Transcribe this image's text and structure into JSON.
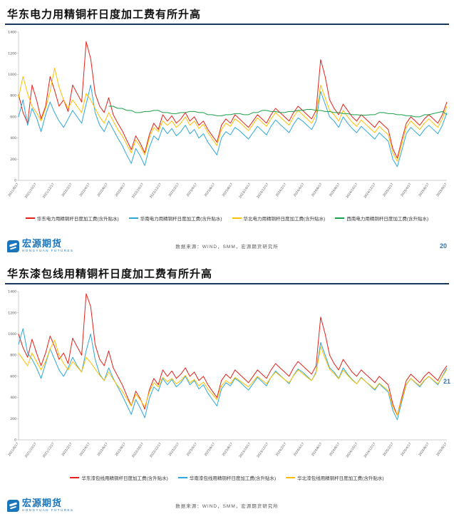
{
  "logo": {
    "cn": "宏源期货",
    "en": "HONGYUAN FUTURES"
  },
  "slides": [
    {
      "title": "华东电力用精铜杆日度加工费有所升高",
      "page_number": "20",
      "source": "数据来源：WIND，SMM，宏源期货研究所",
      "chart_data": {
        "type": "line",
        "title": "华东电力用精铜杆日度加工费有所升高",
        "xlabel": "",
        "ylabel": "",
        "ylim": [
          0,
          1400
        ],
        "yticks": [
          0,
          200,
          400,
          600,
          800,
          1000,
          1200,
          1400
        ],
        "grid": false,
        "legend_position": "bottom",
        "x_labels": [
          "2021/8/17",
          "2021/10/17",
          "2021/12/17",
          "2022/2/17",
          "2022/4/17",
          "2022/6/17",
          "2022/8/17",
          "2022/10/17",
          "2022/12/17",
          "2023/2/17",
          "2023/4/17",
          "2023/6/17",
          "2023/8/17",
          "2023/10/17",
          "2023/12/17",
          "2024/2/17",
          "2024/4/17",
          "2024/6/17",
          "2024/8/17",
          "2024/10/17",
          "2024/12/17",
          "2025/2/17",
          "2025/4/17",
          "2025/6/17",
          "2025/8/17"
        ],
        "series": [
          {
            "name": "华东电力用精铜杆日度加工费(含升贴水)",
            "color": "#e32119",
            "values": [
              810,
              640,
              540,
              900,
              760,
              580,
              700,
              980,
              850,
              700,
              760,
              650,
              900,
              820,
              740,
              1310,
              1150,
              820,
              700,
              640,
              780,
              620,
              540,
              470,
              380,
              290,
              420,
              350,
              260,
              430,
              540,
              480,
              620,
              560,
              610,
              540,
              580,
              640,
              560,
              600,
              520,
              560,
              480,
              420,
              360,
              520,
              580,
              540,
              620,
              580,
              540,
              500,
              560,
              620,
              580,
              540,
              620,
              680,
              640,
              600,
              560,
              640,
              700,
              660,
              620,
              580,
              660,
              1140,
              980,
              760,
              680,
              620,
              720,
              660,
              600,
              560,
              620,
              580,
              540,
              500,
              560,
              520,
              480,
              300,
              210,
              380,
              540,
              600,
              560,
              520,
              580,
              620,
              580,
              540,
              620,
              740
            ]
          },
          {
            "name": "华南电力用精铜杆日度加工费(含升贴水)",
            "color": "#2ea8dc",
            "values": [
              600,
              760,
              520,
              680,
              590,
              460,
              620,
              740,
              640,
              560,
              500,
              580,
              660,
              600,
              540,
              720,
              900,
              640,
              520,
              460,
              560,
              480,
              400,
              330,
              240,
              160,
              300,
              230,
              140,
              310,
              420,
              380,
              500,
              440,
              490,
              420,
              460,
              520,
              440,
              480,
              400,
              440,
              360,
              300,
              240,
              400,
              460,
              430,
              500,
              470,
              430,
              390,
              450,
              510,
              470,
              430,
              510,
              570,
              530,
              490,
              450,
              530,
              590,
              560,
              520,
              480,
              560,
              840,
              720,
              600,
              560,
              500,
              600,
              540,
              490,
              450,
              510,
              470,
              430,
              390,
              450,
              410,
              370,
              200,
              130,
              280,
              440,
              500,
              460,
              420,
              480,
              520,
              480,
              440,
              520,
              640
            ]
          },
          {
            "name": "华北电力用精铜杆日度加工费(含升贴水)",
            "color": "#ffc000",
            "values": [
              780,
              980,
              820,
              700,
              640,
              560,
              680,
              840,
              1060,
              880,
              760,
              680,
              760,
              700,
              640,
              820,
              760,
              680,
              600,
              540,
              640,
              560,
              480,
              420,
              340,
              260,
              380,
              320,
              240,
              400,
              500,
              460,
              560,
              520,
              560,
              500,
              540,
              600,
              520,
              560,
              490,
              530,
              450,
              390,
              330,
              480,
              540,
              510,
              580,
              550,
              510,
              470,
              530,
              590,
              550,
              510,
              580,
              640,
              600,
              560,
              520,
              600,
              660,
              620,
              580,
              540,
              620,
              900,
              780,
              660,
              620,
              560,
              660,
              600,
              550,
              510,
              570,
              530,
              490,
              450,
              510,
              470,
              430,
              260,
              180,
              340,
              500,
              560,
              520,
              480,
              540,
              580,
              540,
              500,
              580,
              700
            ]
          },
          {
            "name": "西南电力用精铜杆日度加工费(含升贴水)",
            "color": "#1e9e4a",
            "values": [
              null,
              null,
              null,
              null,
              null,
              null,
              null,
              null,
              null,
              null,
              null,
              null,
              null,
              null,
              null,
              null,
              null,
              null,
              null,
              null,
              700,
              700,
              680,
              680,
              660,
              660,
              640,
              640,
              650,
              650,
              660,
              660,
              640,
              640,
              630,
              630,
              640,
              640,
              650,
              650,
              640,
              640,
              620,
              620,
              610,
              610,
              620,
              620,
              630,
              630,
              620,
              620,
              640,
              640,
              660,
              660,
              650,
              650,
              640,
              640,
              650,
              650,
              660,
              660,
              670,
              670,
              660,
              660,
              650,
              650,
              640,
              640,
              630,
              630,
              620,
              620,
              615,
              615,
              620,
              620,
              640,
              640,
              630,
              630,
              620,
              620,
              610,
              610,
              600,
              600,
              620,
              620,
              630,
              640,
              650,
              620
            ]
          }
        ]
      }
    },
    {
      "title": "华东漆包线用精铜杆日度加工费有所升高",
      "page_number": "21",
      "source": "数据来源：WIND，SMM，宏源期货研究所",
      "chart_data": {
        "type": "line",
        "title": "华东漆包线用精铜杆日度加工费有所升高",
        "xlabel": "",
        "ylabel": "",
        "ylim": [
          0,
          1400
        ],
        "yticks": [
          0,
          200,
          400,
          600,
          800,
          1000,
          1200,
          1400
        ],
        "grid": false,
        "legend_position": "bottom",
        "x_labels": [
          "2021/8/17",
          "2021/10/17",
          "2021/12/17",
          "2022/2/17",
          "2022/4/17",
          "2022/6/17",
          "2022/8/17",
          "2022/10/17",
          "2022/12/17",
          "2023/2/17",
          "2023/4/17",
          "2023/6/17",
          "2023/8/17",
          "2023/10/17",
          "2023/12/17",
          "2024/2/17",
          "2024/4/17",
          "2024/6/17",
          "2024/8/17",
          "2024/10/17",
          "2024/12/17",
          "2025/2/17",
          "2025/4/17",
          "2025/6/17",
          "2025/8/17"
        ],
        "series": [
          {
            "name": "华东漆包线用精铜杆日度加工费(含升贴水)",
            "color": "#e32119",
            "values": [
              1000,
              870,
              780,
              950,
              820,
              700,
              820,
              980,
              880,
              760,
              820,
              720,
              960,
              880,
              800,
              1380,
              1260,
              900,
              760,
              700,
              840,
              680,
              600,
              520,
              420,
              320,
              460,
              390,
              290,
              470,
              580,
              520,
              660,
              600,
              650,
              580,
              620,
              680,
              600,
              640,
              560,
              600,
              520,
              460,
              400,
              560,
              620,
              580,
              660,
              620,
              580,
              540,
              600,
              660,
              620,
              580,
              660,
              720,
              680,
              640,
              600,
              680,
              740,
              700,
              660,
              620,
              700,
              1160,
              1000,
              800,
              720,
              660,
              760,
              700,
              640,
              600,
              660,
              620,
              580,
              540,
              600,
              560,
              520,
              340,
              230,
              400,
              560,
              620,
              580,
              540,
              600,
              640,
              600,
              560,
              640,
              700
            ]
          },
          {
            "name": "华南漆包线用精铜杆日度加工费(含升贴水)",
            "color": "#2ea8dc",
            "values": [
              900,
              1050,
              820,
              760,
              680,
              580,
              720,
              860,
              760,
              660,
              600,
              680,
              780,
              700,
              640,
              840,
              1000,
              760,
              620,
              560,
              680,
              580,
              500,
              420,
              330,
              240,
              380,
              300,
              210,
              390,
              500,
              460,
              580,
              520,
              570,
              500,
              540,
              600,
              520,
              560,
              480,
              520,
              440,
              380,
              320,
              480,
              540,
              510,
              580,
              550,
              510,
              470,
              530,
              590,
              550,
              510,
              590,
              650,
              610,
              570,
              530,
              610,
              670,
              640,
              600,
              560,
              640,
              920,
              800,
              680,
              640,
              580,
              680,
              620,
              570,
              530,
              590,
              550,
              510,
              470,
              530,
              490,
              450,
              280,
              190,
              360,
              520,
              580,
              540,
              500,
              560,
              600,
              560,
              520,
              600,
              680
            ]
          },
          {
            "name": "华北漆包线用精铜杆日度加工费(含升贴水)",
            "color": "#ffc000",
            "values": [
              820,
              760,
              700,
              820,
              740,
              660,
              740,
              860,
              940,
              800,
              720,
              660,
              740,
              690,
              640,
              780,
              730,
              670,
              610,
              560,
              640,
              570,
              510,
              460,
              390,
              320,
              430,
              380,
              310,
              450,
              540,
              500,
              590,
              550,
              580,
              530,
              560,
              610,
              540,
              570,
              510,
              545,
              480,
              430,
              380,
              510,
              560,
              530,
              590,
              560,
              530,
              500,
              550,
              600,
              565,
              530,
              590,
              640,
              605,
              570,
              540,
              605,
              660,
              625,
              590,
              560,
              630,
              880,
              770,
              665,
              625,
              575,
              660,
              610,
              565,
              530,
              585,
              550,
              515,
              480,
              535,
              500,
              465,
              310,
              230,
              380,
              525,
              580,
              545,
              510,
              565,
              600,
              565,
              530,
              595,
              665
            ]
          }
        ]
      }
    }
  ]
}
